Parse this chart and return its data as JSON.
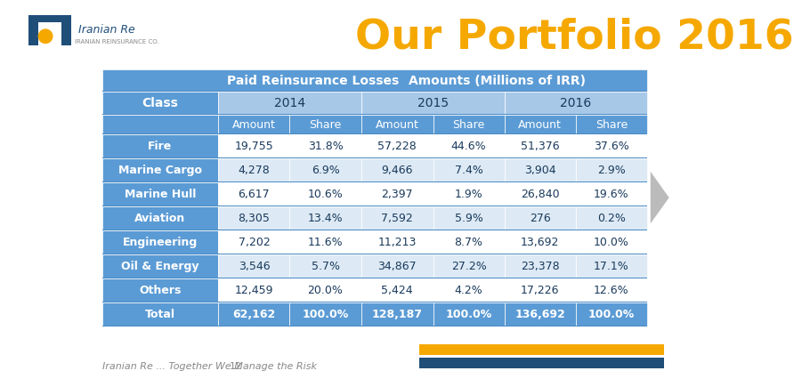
{
  "title": "Our Portfolio 2016",
  "title_color": "#F5A800",
  "background_color": "#FFFFFF",
  "header1_text": "Paid Reinsurance Losses",
  "header2_text": "Amounts (Millions of IRR)",
  "header_bg": "#5B9BD5",
  "header_text_color": "#FFFFFF",
  "subheader_years": [
    "2014",
    "2015",
    "2016"
  ],
  "subheader_cols": [
    "Amount",
    "Share",
    "Amount",
    "Share",
    "Amount",
    "Share"
  ],
  "col_header": "Class",
  "rows": [
    [
      "Fire",
      "19,755",
      "31.8%",
      "57,228",
      "44.6%",
      "51,376",
      "37.6%"
    ],
    [
      "Marine Cargo",
      "4,278",
      "6.9%",
      "9,466",
      "7.4%",
      "3,904",
      "2.9%"
    ],
    [
      "Marine Hull",
      "6,617",
      "10.6%",
      "2,397",
      "1.9%",
      "26,840",
      "19.6%"
    ],
    [
      "Aviation",
      "8,305",
      "13.4%",
      "7,592",
      "5.9%",
      "276",
      "0.2%"
    ],
    [
      "Engineering",
      "7,202",
      "11.6%",
      "11,213",
      "8.7%",
      "13,692",
      "10.0%"
    ],
    [
      "Oil & Energy",
      "3,546",
      "5.7%",
      "34,867",
      "27.2%",
      "23,378",
      "17.1%"
    ],
    [
      "Others",
      "12,459",
      "20.0%",
      "5,424",
      "4.2%",
      "17,226",
      "12.6%"
    ],
    [
      "Total",
      "62,162",
      "100.0%",
      "128,187",
      "100.0%",
      "136,692",
      "100.0%"
    ]
  ],
  "class_col_bg": "#5B9BD5",
  "class_col_text": "#FFFFFF",
  "data_white_bg": "#FFFFFF",
  "data_light_bg": "#DDEAF5",
  "data_text": "#1A3A5C",
  "total_row_bg": "#5B9BD5",
  "total_row_text": "#FFFFFF",
  "footer_text": "Iranian Re ... Together We Manage the Risk",
  "footer_page": "12",
  "footer_bar1_color": "#F5A800",
  "footer_bar2_color": "#1F4E79",
  "arrow_color": "#B0B0B0"
}
